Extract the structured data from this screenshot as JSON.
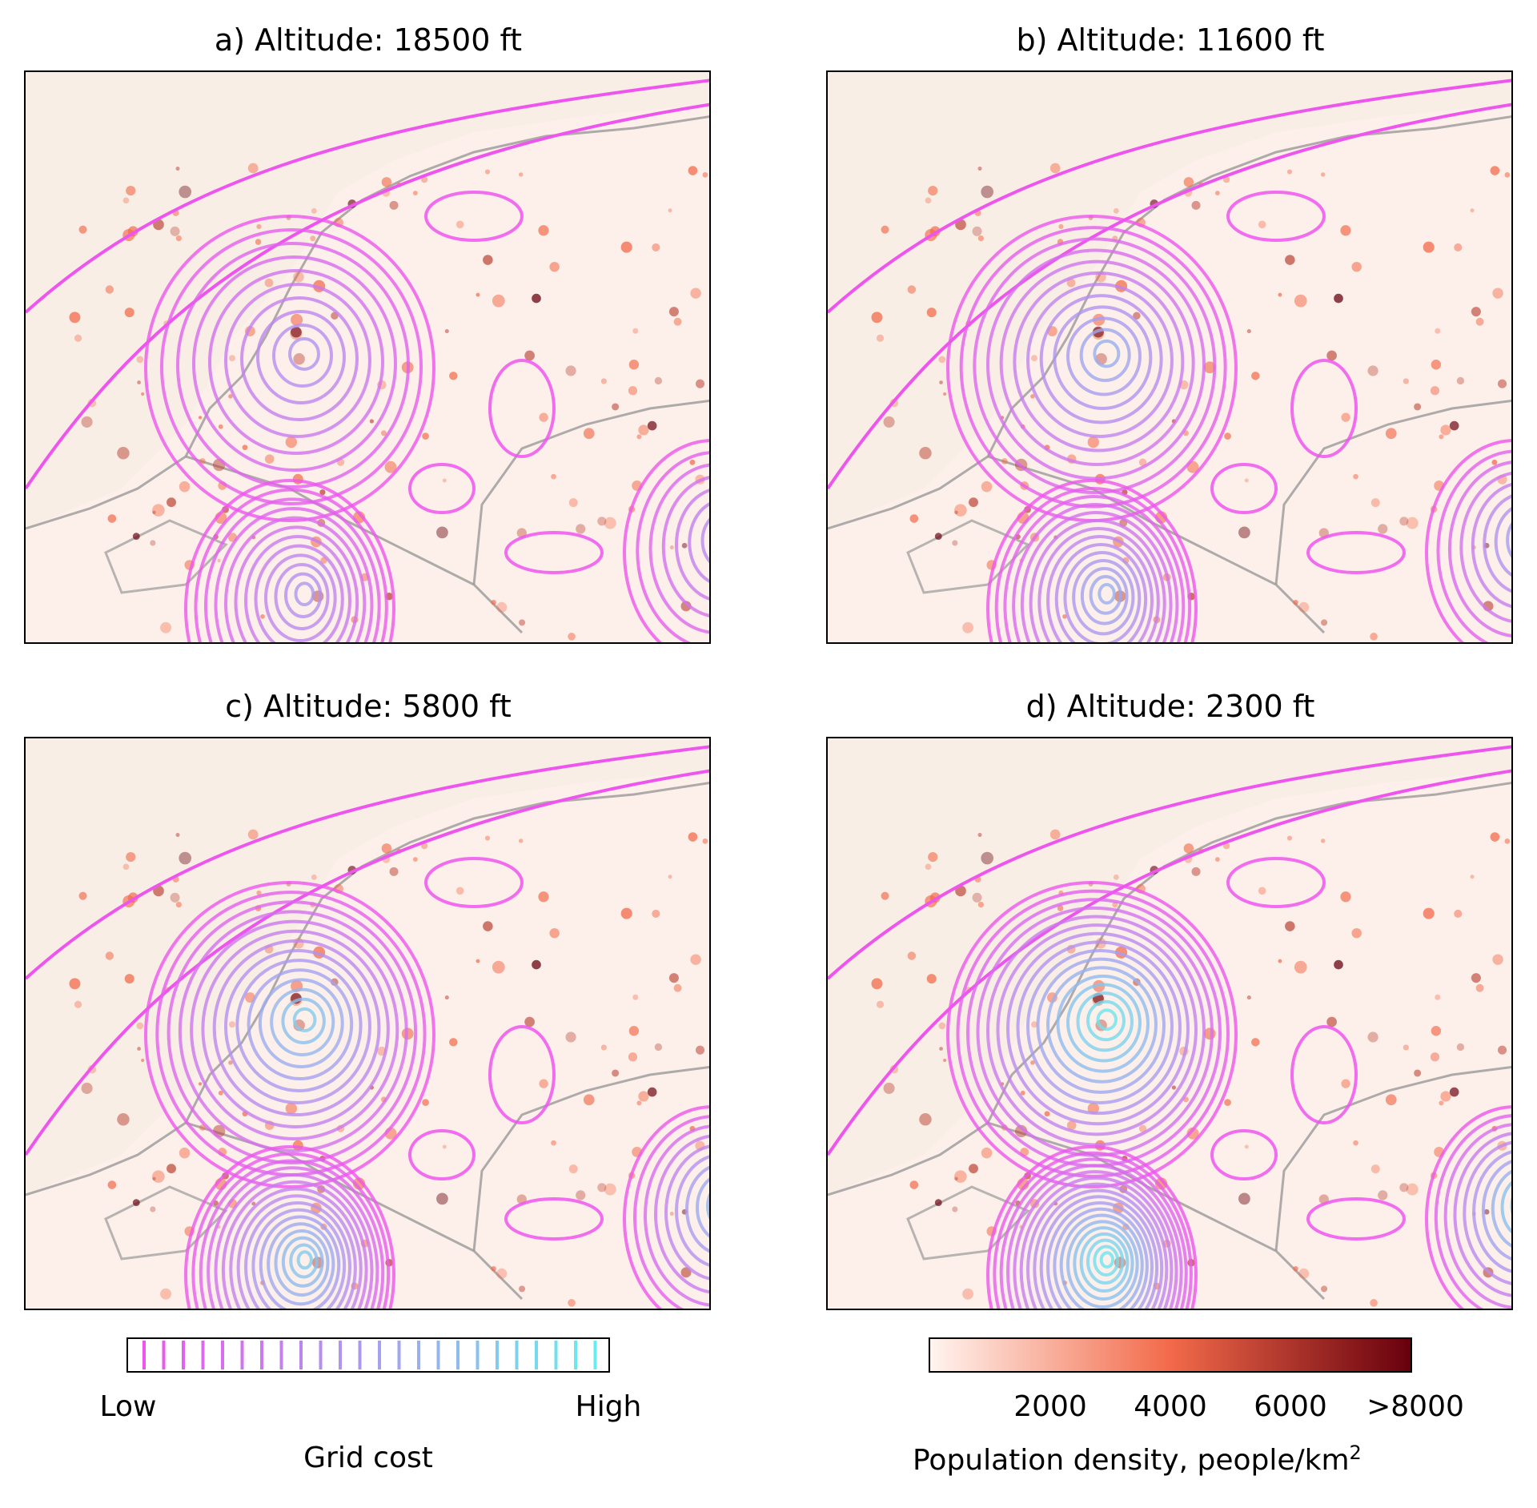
{
  "panels": [
    {
      "title": "a) Altitude: 18500 ft",
      "intensity": 0
    },
    {
      "title": "b) Altitude: 11600 ft",
      "intensity": 1
    },
    {
      "title": "c) Altitude: 5800 ft",
      "intensity": 2
    },
    {
      "title": "d) Altitude: 2300 ft",
      "intensity": 3
    }
  ],
  "grid_cost_colorbar": {
    "low_label": "Low",
    "high_label": "High",
    "title": "Grid cost",
    "color_low": "#ee55ee",
    "color_mid": "#a89cf0",
    "color_high": "#66eeee"
  },
  "population_colorbar": {
    "ticks": [
      "2000",
      "4000",
      "6000",
      ">8000"
    ],
    "title": "Population density, people/km",
    "title_superscript": "2",
    "color_low": "#fff5f0",
    "color_mid": "#f26a4a",
    "color_high": "#67000d"
  },
  "colors": {
    "land": "#fdf0ea",
    "sea": "#f8eee6",
    "coastline": "#999999",
    "contour": "#ee55ee"
  }
}
